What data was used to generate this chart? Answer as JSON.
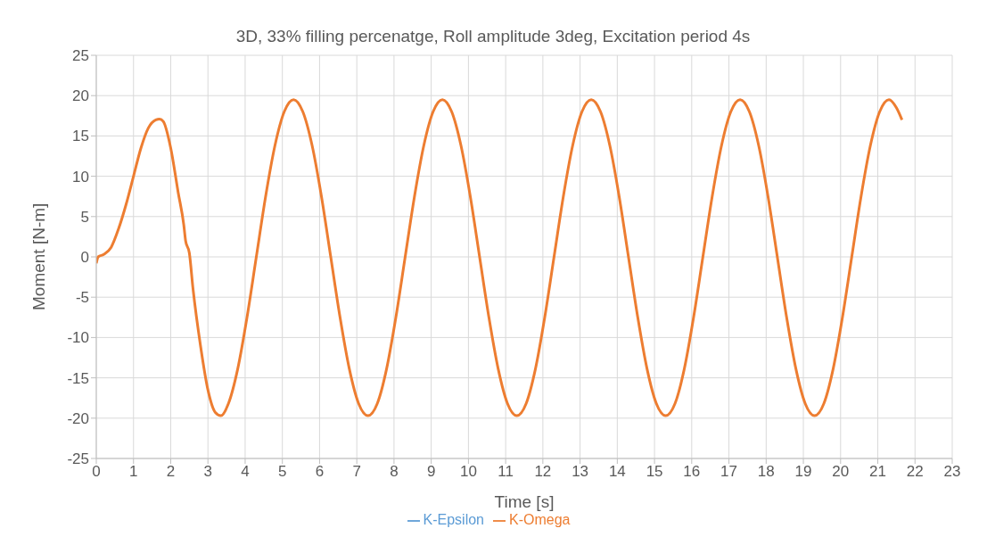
{
  "chart_data": {
    "type": "line",
    "title": "3D, 33% filling percenatge, Roll amplitude 3deg, Excitation period 4s",
    "xlabel": "Time [s]",
    "ylabel": "Moment [N-m]",
    "x": [
      0,
      0.05,
      0.2,
      0.4,
      0.6,
      0.8,
      1.0,
      1.2,
      1.4,
      1.6,
      1.7,
      1.8,
      2.0,
      2.2,
      2.35,
      2.4,
      2.5,
      2.6,
      2.8,
      3.0,
      3.2,
      3.35,
      3.55,
      3.8,
      4.05,
      4.3,
      4.55,
      4.8,
      5.05,
      5.3,
      5.55,
      5.8,
      6.05,
      6.3,
      6.55,
      6.8,
      7.05,
      7.3,
      7.55,
      7.8,
      8.05,
      8.3,
      8.55,
      8.8,
      9.05,
      9.3,
      9.55,
      9.8,
      10.05,
      10.3,
      10.55,
      10.8,
      11.05,
      11.3,
      11.55,
      11.8,
      12.05,
      12.3,
      12.55,
      12.8,
      13.05,
      13.3,
      13.55,
      13.8,
      14.05,
      14.3,
      14.55,
      14.8,
      15.05,
      15.3,
      15.55,
      15.8,
      16.05,
      16.3,
      16.55,
      16.8,
      17.05,
      17.3,
      17.55,
      17.8,
      18.05,
      18.3,
      18.55,
      18.8,
      19.05,
      19.3,
      19.55,
      19.8,
      20.05,
      20.3,
      20.55,
      20.8,
      21.05,
      21.3,
      21.5,
      21.65
    ],
    "series": [
      {
        "name": "K-Epsilon",
        "color": "#5b9bd5",
        "values": [
          null,
          null,
          null,
          null,
          null,
          null,
          null,
          null,
          null,
          null,
          null,
          null,
          null,
          null,
          null,
          null,
          null,
          null,
          null,
          null,
          null,
          null,
          null,
          null,
          null,
          null,
          null,
          null,
          null,
          null,
          null,
          null,
          null,
          null,
          null,
          null,
          null,
          null,
          null,
          null,
          null,
          null,
          null,
          null,
          null,
          null,
          null,
          null,
          null,
          null,
          null,
          null,
          null,
          null,
          null,
          null,
          null,
          null,
          null,
          null,
          null,
          null,
          null,
          null,
          null,
          null,
          null,
          null,
          null,
          null,
          null,
          null,
          null,
          null,
          null,
          null,
          null,
          null,
          null,
          null,
          null,
          null,
          null,
          null,
          null,
          null,
          null,
          null,
          null,
          null,
          null,
          null,
          null,
          null,
          null,
          null
        ]
      },
      {
        "name": "K-Omega",
        "color": "#ed7d31",
        "values": [
          -0.8,
          0,
          0.3,
          1.2,
          3.5,
          6.5,
          10,
          13.5,
          16,
          17,
          17.1,
          16.8,
          13.5,
          8,
          4,
          2,
          0.5,
          -4,
          -11,
          -16.5,
          -19.3,
          -19.7,
          -18.2,
          -13.9,
          -7.5,
          0,
          7.5,
          13.8,
          18,
          19.5,
          18,
          13.8,
          7.5,
          0,
          -7.5,
          -13.9,
          -18.2,
          -19.7,
          -18.2,
          -13.9,
          -7.5,
          0,
          7.5,
          13.8,
          18,
          19.5,
          18,
          13.8,
          7.5,
          0,
          -7.5,
          -13.9,
          -18.2,
          -19.7,
          -18.2,
          -13.9,
          -7.5,
          0,
          7.5,
          13.8,
          18,
          19.5,
          18,
          13.8,
          7.5,
          0,
          -7.5,
          -13.9,
          -18.2,
          -19.7,
          -18.2,
          -13.9,
          -7.5,
          0,
          7.5,
          13.8,
          18,
          19.5,
          18,
          13.8,
          7.5,
          0,
          -7.5,
          -13.9,
          -18.2,
          -19.7,
          -18.2,
          -13.9,
          -7.5,
          0,
          7.5,
          13.8,
          18,
          19.5,
          18.5,
          17
        ]
      }
    ],
    "xlim": [
      0,
      23
    ],
    "xticks": [
      0,
      1,
      2,
      3,
      4,
      5,
      6,
      7,
      8,
      9,
      10,
      11,
      12,
      13,
      14,
      15,
      16,
      17,
      18,
      19,
      20,
      21,
      22,
      23
    ],
    "ylim": [
      -25,
      25
    ],
    "yticks": [
      -25,
      -20,
      -15,
      -10,
      -5,
      0,
      5,
      10,
      15,
      20,
      25
    ],
    "grid": true,
    "legend": "bottom"
  }
}
